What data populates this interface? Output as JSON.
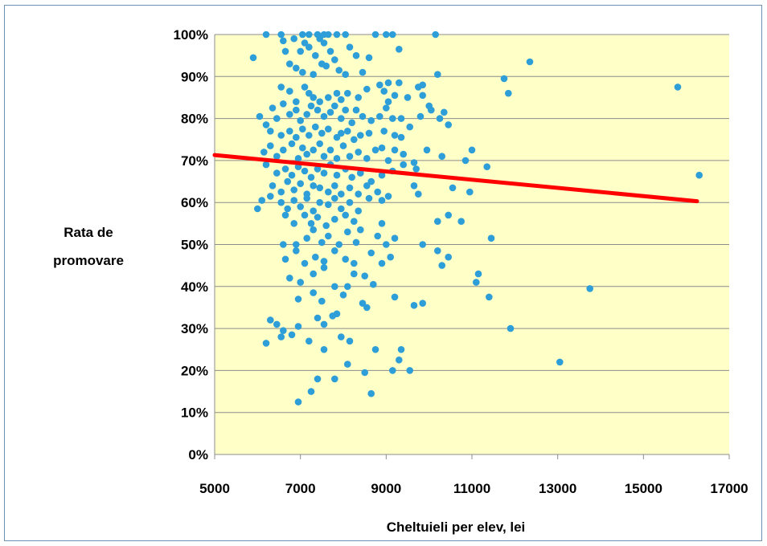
{
  "chart_data": {
    "type": "scatter",
    "xlabel": "Cheltuieli per elev, lei",
    "ylabel_lines": [
      "Rata de",
      "promovare"
    ],
    "xlim": [
      5000,
      17000
    ],
    "ylim": [
      0,
      100
    ],
    "x_ticks": [
      5000,
      7000,
      9000,
      11000,
      13000,
      15000,
      17000
    ],
    "y_ticks": [
      0,
      10,
      20,
      30,
      40,
      50,
      60,
      70,
      80,
      90,
      100
    ],
    "y_tick_format": "percent",
    "grid": "horizontal",
    "colors": {
      "plot_bg": "#ffffc8",
      "points": "#2e9ed8",
      "trend": "#ff0000",
      "grid": "#8c8c8c"
    },
    "trendline": {
      "x": [
        5000,
        16250
      ],
      "y": [
        71.3,
        60.3
      ]
    },
    "series": [
      {
        "points": [
          [
            5900,
            94.5
          ],
          [
            6200,
            100
          ],
          [
            6550,
            100
          ],
          [
            6600,
            98.5
          ],
          [
            6850,
            99
          ],
          [
            6650,
            96
          ],
          [
            7050,
            100
          ],
          [
            7200,
            100
          ],
          [
            7400,
            100
          ],
          [
            7550,
            100
          ],
          [
            7650,
            100
          ],
          [
            7850,
            100
          ],
          [
            8050,
            100
          ],
          [
            8750,
            100
          ],
          [
            9000,
            100
          ],
          [
            9150,
            100
          ],
          [
            10150,
            100
          ],
          [
            7100,
            98
          ],
          [
            7200,
            97
          ],
          [
            7450,
            99
          ],
          [
            7550,
            98
          ],
          [
            7000,
            96
          ],
          [
            7350,
            95
          ],
          [
            7700,
            96
          ],
          [
            7800,
            94
          ],
          [
            8150,
            97
          ],
          [
            8300,
            95
          ],
          [
            8600,
            94.5
          ],
          [
            9300,
            96.5
          ],
          [
            6750,
            93
          ],
          [
            6900,
            92
          ],
          [
            7050,
            91
          ],
          [
            7300,
            90.5
          ],
          [
            7500,
            93
          ],
          [
            7600,
            92.5
          ],
          [
            7900,
            91.5
          ],
          [
            8050,
            90.5
          ],
          [
            8450,
            91
          ],
          [
            8850,
            88
          ],
          [
            9050,
            88.5
          ],
          [
            9300,
            88.5
          ],
          [
            9750,
            87.5
          ],
          [
            9850,
            88
          ],
          [
            10200,
            90.5
          ],
          [
            11750,
            89.5
          ],
          [
            12350,
            93.5
          ],
          [
            6550,
            87.5
          ],
          [
            6750,
            86.5
          ],
          [
            6900,
            84
          ],
          [
            7100,
            87.5
          ],
          [
            7200,
            86
          ],
          [
            7300,
            85
          ],
          [
            7450,
            84
          ],
          [
            7650,
            85
          ],
          [
            7850,
            86
          ],
          [
            7950,
            84.5
          ],
          [
            8100,
            86
          ],
          [
            8350,
            85
          ],
          [
            8550,
            87
          ],
          [
            8950,
            86.5
          ],
          [
            9050,
            84
          ],
          [
            9200,
            85.5
          ],
          [
            9500,
            85
          ],
          [
            9850,
            85.5
          ],
          [
            10000,
            83
          ],
          [
            10350,
            81.5
          ],
          [
            11850,
            86
          ],
          [
            15800,
            87.5
          ],
          [
            6050,
            80.5
          ],
          [
            6200,
            78.5
          ],
          [
            6350,
            82.5
          ],
          [
            6450,
            80
          ],
          [
            6600,
            83.5
          ],
          [
            6750,
            81
          ],
          [
            6900,
            82
          ],
          [
            7000,
            79.5
          ],
          [
            7150,
            81
          ],
          [
            7250,
            83
          ],
          [
            7400,
            82
          ],
          [
            7550,
            80.5
          ],
          [
            7700,
            81.5
          ],
          [
            7800,
            83
          ],
          [
            7950,
            80
          ],
          [
            8050,
            82
          ],
          [
            8200,
            79
          ],
          [
            8300,
            82
          ],
          [
            8450,
            80.5
          ],
          [
            8650,
            79.5
          ],
          [
            8850,
            80.5
          ],
          [
            9000,
            82.5
          ],
          [
            9150,
            80
          ],
          [
            9350,
            80
          ],
          [
            9550,
            78
          ],
          [
            9800,
            80.5
          ],
          [
            10050,
            82
          ],
          [
            10250,
            80
          ],
          [
            10450,
            78.5
          ],
          [
            6300,
            77
          ],
          [
            6550,
            76
          ],
          [
            6750,
            77
          ],
          [
            6900,
            75.5
          ],
          [
            7050,
            77.5
          ],
          [
            7200,
            76
          ],
          [
            7350,
            78
          ],
          [
            7500,
            76.5
          ],
          [
            7650,
            77.5
          ],
          [
            7850,
            75.5
          ],
          [
            7950,
            76.5
          ],
          [
            8100,
            77
          ],
          [
            8250,
            75
          ],
          [
            8400,
            76
          ],
          [
            8600,
            76.5
          ],
          [
            8950,
            77
          ],
          [
            9200,
            76
          ],
          [
            9350,
            75.5
          ],
          [
            6150,
            72
          ],
          [
            6300,
            73.5
          ],
          [
            6450,
            71
          ],
          [
            6600,
            72.5
          ],
          [
            6800,
            74
          ],
          [
            6950,
            70.5
          ],
          [
            7050,
            73
          ],
          [
            7150,
            71.5
          ],
          [
            7300,
            72.5
          ],
          [
            7450,
            74
          ],
          [
            7550,
            71
          ],
          [
            7700,
            72.5
          ],
          [
            7850,
            70.5
          ],
          [
            8000,
            73.5
          ],
          [
            8150,
            71
          ],
          [
            8350,
            72
          ],
          [
            8550,
            70.5
          ],
          [
            8750,
            72.5
          ],
          [
            8900,
            73
          ],
          [
            9050,
            70
          ],
          [
            9200,
            72.5
          ],
          [
            9400,
            71.5
          ],
          [
            9650,
            69.5
          ],
          [
            9950,
            72.5
          ],
          [
            10300,
            71
          ],
          [
            10850,
            70
          ],
          [
            11000,
            72.5
          ],
          [
            11350,
            68.5
          ],
          [
            6200,
            69
          ],
          [
            6450,
            67
          ],
          [
            6650,
            68
          ],
          [
            6800,
            66.5
          ],
          [
            6950,
            68.5
          ],
          [
            7100,
            67.5
          ],
          [
            7250,
            66
          ],
          [
            7400,
            68
          ],
          [
            7550,
            67
          ],
          [
            7700,
            69
          ],
          [
            7850,
            66.5
          ],
          [
            8050,
            68
          ],
          [
            8200,
            66
          ],
          [
            8400,
            67
          ],
          [
            8650,
            65
          ],
          [
            8900,
            66.5
          ],
          [
            9150,
            67.5
          ],
          [
            9400,
            69
          ],
          [
            9700,
            68
          ],
          [
            6350,
            64
          ],
          [
            6550,
            62.5
          ],
          [
            6700,
            65
          ],
          [
            6850,
            63
          ],
          [
            7000,
            64.5
          ],
          [
            7150,
            62
          ],
          [
            7300,
            64
          ],
          [
            7450,
            63.5
          ],
          [
            7650,
            62.5
          ],
          [
            7800,
            64
          ],
          [
            7950,
            62
          ],
          [
            8150,
            63.5
          ],
          [
            8350,
            62
          ],
          [
            8550,
            64
          ],
          [
            8800,
            62.5
          ],
          [
            9050,
            61.5
          ],
          [
            9650,
            64
          ],
          [
            9750,
            62
          ],
          [
            10550,
            63.5
          ],
          [
            10950,
            62.5
          ],
          [
            6100,
            60.5
          ],
          [
            6300,
            61.5
          ],
          [
            6550,
            60
          ],
          [
            6700,
            58.5
          ],
          [
            6850,
            60.5
          ],
          [
            7000,
            59
          ],
          [
            7150,
            61
          ],
          [
            7300,
            58
          ],
          [
            7450,
            60
          ],
          [
            7650,
            59.5
          ],
          [
            7800,
            61
          ],
          [
            7950,
            58.5
          ],
          [
            8150,
            60
          ],
          [
            8350,
            58
          ],
          [
            8600,
            61
          ],
          [
            8900,
            60.5
          ],
          [
            6000,
            58.5
          ],
          [
            6650,
            57
          ],
          [
            6850,
            55
          ],
          [
            7100,
            57
          ],
          [
            7250,
            55
          ],
          [
            7400,
            56.5
          ],
          [
            7600,
            54.5
          ],
          [
            7800,
            56
          ],
          [
            8050,
            57
          ],
          [
            8250,
            55.5
          ],
          [
            8400,
            53.5
          ],
          [
            8900,
            55
          ],
          [
            10200,
            55.5
          ],
          [
            10450,
            57
          ],
          [
            10750,
            55.5
          ],
          [
            6600,
            50
          ],
          [
            6900,
            50
          ],
          [
            7150,
            51.5
          ],
          [
            7300,
            53.5
          ],
          [
            7500,
            50.5
          ],
          [
            7650,
            52
          ],
          [
            7900,
            50
          ],
          [
            8100,
            53
          ],
          [
            8300,
            50.5
          ],
          [
            8800,
            52
          ],
          [
            9000,
            50
          ],
          [
            9200,
            51.5
          ],
          [
            9850,
            50
          ],
          [
            11450,
            51.5
          ],
          [
            6650,
            46.5
          ],
          [
            6900,
            48.5
          ],
          [
            7100,
            45.5
          ],
          [
            7350,
            47
          ],
          [
            7550,
            46
          ],
          [
            7800,
            48.5
          ],
          [
            8050,
            46.5
          ],
          [
            8250,
            45.5
          ],
          [
            8650,
            48
          ],
          [
            8900,
            45.5
          ],
          [
            9100,
            47
          ],
          [
            10200,
            48.5
          ],
          [
            10300,
            45
          ],
          [
            10450,
            47
          ],
          [
            6750,
            42
          ],
          [
            7000,
            41
          ],
          [
            7300,
            43
          ],
          [
            7550,
            44.5
          ],
          [
            7800,
            40
          ],
          [
            8100,
            40
          ],
          [
            8250,
            43
          ],
          [
            8500,
            42.5
          ],
          [
            8700,
            40.5
          ],
          [
            11150,
            43
          ],
          [
            11100,
            41
          ],
          [
            6950,
            37
          ],
          [
            7300,
            38.5
          ],
          [
            7500,
            36.5
          ],
          [
            7850,
            33.5
          ],
          [
            8000,
            38
          ],
          [
            8450,
            36
          ],
          [
            8550,
            35
          ],
          [
            9200,
            37.5
          ],
          [
            9650,
            35.5
          ],
          [
            9850,
            36
          ],
          [
            11400,
            37.5
          ],
          [
            13750,
            39.5
          ],
          [
            6300,
            32
          ],
          [
            6450,
            31
          ],
          [
            6550,
            28
          ],
          [
            6600,
            29.5
          ],
          [
            6800,
            28.5
          ],
          [
            6950,
            30.5
          ],
          [
            7200,
            27
          ],
          [
            7400,
            32.5
          ],
          [
            7550,
            31
          ],
          [
            7750,
            33
          ],
          [
            7950,
            28
          ],
          [
            8150,
            27
          ],
          [
            8750,
            25
          ],
          [
            9300,
            22.5
          ],
          [
            9350,
            25
          ],
          [
            11900,
            30
          ],
          [
            13050,
            22
          ],
          [
            6200,
            26.5
          ],
          [
            7550,
            25
          ],
          [
            7400,
            18
          ],
          [
            7800,
            18
          ],
          [
            8100,
            21.5
          ],
          [
            8500,
            19.5
          ],
          [
            9150,
            20
          ],
          [
            9550,
            20
          ],
          [
            7250,
            15
          ],
          [
            6950,
            12.5
          ],
          [
            8650,
            14.5
          ],
          [
            16300,
            66.5
          ]
        ]
      }
    ]
  }
}
